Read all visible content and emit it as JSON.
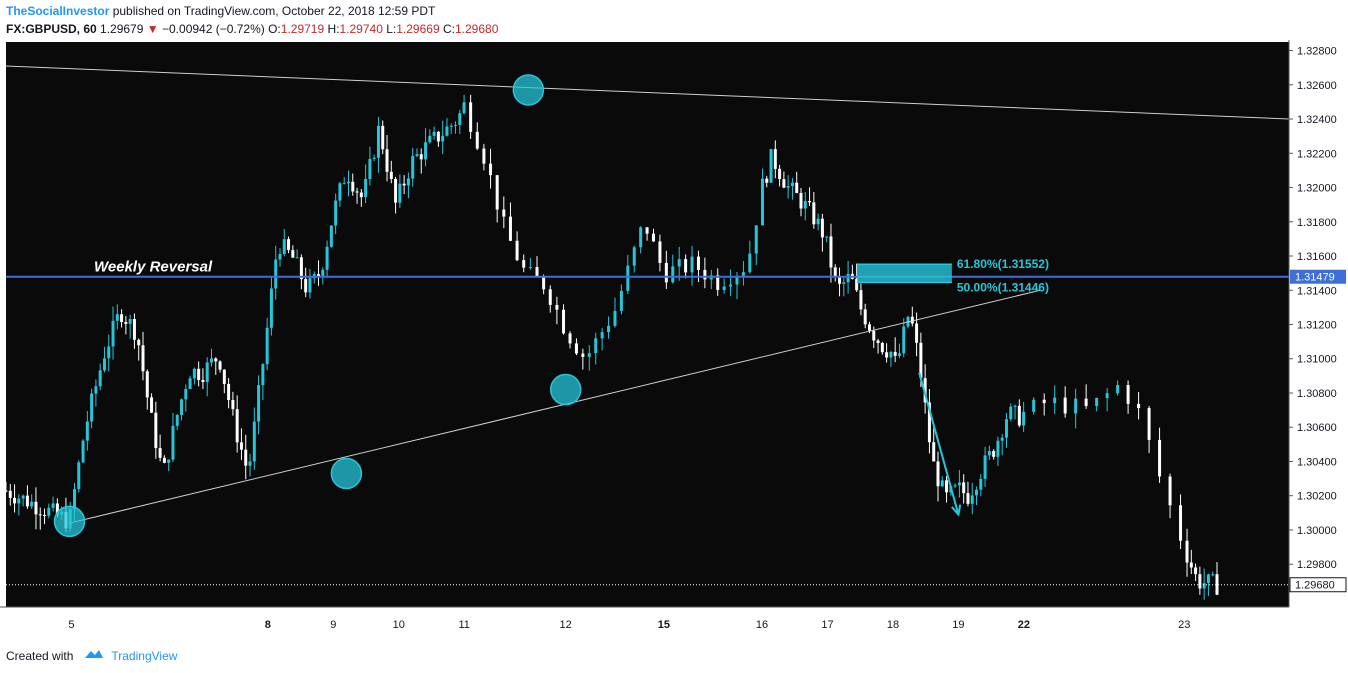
{
  "header": {
    "publisher": "TheSocialInvestor",
    "published_text": " published on TradingView.com, October 22, 2018 12:59 PDT",
    "symbol": "FX:GBPUSD, 60",
    "last": "1.29679",
    "change_arrow": "▼",
    "change": "−0.00942 (−0.72%)",
    "o_label": "O:",
    "o_value": "1.29719",
    "h_label": "H:",
    "h_value": "1.29740",
    "l_label": "L:",
    "l_value": "1.29669",
    "c_label": "C:",
    "c_value": "1.29680"
  },
  "footer": {
    "created_with": "Created with",
    "brand": "TradingView",
    "logo_icon": "tradingview-cloud-icon"
  },
  "colors": {
    "background": "#0a0a0a",
    "candle_up": "#26c6da",
    "candle_down": "#ffffff",
    "level_line": "#3d6fd6",
    "fib_zone": "#26c6da",
    "trendline": "#cfcfcf",
    "text_red": "#c62828"
  },
  "chart_data": {
    "type": "candlestick",
    "symbol": "FX:GBPUSD",
    "interval": "60",
    "ylim": [
      1.2955,
      1.3285
    ],
    "y_ticks": [
      "1.32800",
      "1.32600",
      "1.32400",
      "1.32200",
      "1.32000",
      "1.31800",
      "1.31600",
      "1.31400",
      "1.31200",
      "1.31000",
      "1.30800",
      "1.30600",
      "1.30400",
      "1.30200",
      "1.30000",
      "1.29800"
    ],
    "x_ticks": [
      {
        "label": "5",
        "bold": false
      },
      {
        "label": "8",
        "bold": true
      },
      {
        "label": "9",
        "bold": false
      },
      {
        "label": "10",
        "bold": false
      },
      {
        "label": "11",
        "bold": false
      },
      {
        "label": "12",
        "bold": false
      },
      {
        "label": "15",
        "bold": true
      },
      {
        "label": "16",
        "bold": false
      },
      {
        "label": "17",
        "bold": false
      },
      {
        "label": "18",
        "bold": false
      },
      {
        "label": "19",
        "bold": false
      },
      {
        "label": "22",
        "bold": true
      },
      {
        "label": "23",
        "bold": false
      }
    ],
    "price_tags": [
      {
        "label": "1.31479",
        "value": 1.31479,
        "kind": "level"
      },
      {
        "label": "1.29680",
        "value": 1.2968,
        "kind": "last"
      }
    ],
    "annotations": {
      "horizontal_line": {
        "label": "Weekly Reversal",
        "value": 1.31479
      },
      "fib_levels": [
        {
          "label": "61.80%(1.31552)",
          "value": 1.31552
        },
        {
          "label": "50.00%(1.31446)",
          "value": 1.31446
        }
      ],
      "swing_points": [
        {
          "x": 4.97,
          "y": 1.3005
        },
        {
          "x": 9.2,
          "y": 1.3033
        },
        {
          "x": 11.98,
          "y": 1.3257
        },
        {
          "x": 12.55,
          "y": 1.3082
        }
      ],
      "upper_trendline": {
        "from": [
          4.0,
          1.3271
        ],
        "to": [
          23.6,
          1.324
        ]
      },
      "lower_trendline": {
        "from": [
          4.97,
          1.3004
        ],
        "to": [
          19.8,
          1.314
        ]
      },
      "arrow": {
        "from": [
          17.95,
          1.3092
        ],
        "to": [
          18.55,
          1.3009
        ]
      }
    },
    "series": [
      {
        "name": "FX:GBPUSD",
        "x": [],
        "values": []
      }
    ]
  }
}
